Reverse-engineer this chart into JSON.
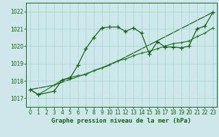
{
  "title": "Graphe pression niveau de la mer (hPa)",
  "bg_color": "#cce8e8",
  "grid_color": "#b0d4d4",
  "line_color_dark": "#1a5c1a",
  "line_color_mid": "#2d7a2d",
  "xlim": [
    -0.5,
    23.5
  ],
  "ylim": [
    1016.5,
    1022.5
  ],
  "yticks": [
    1017,
    1018,
    1019,
    1020,
    1021,
    1022
  ],
  "xticks": [
    0,
    1,
    2,
    3,
    4,
    5,
    6,
    7,
    8,
    9,
    10,
    11,
    12,
    13,
    14,
    15,
    16,
    17,
    18,
    19,
    20,
    21,
    22,
    23
  ],
  "series1_x": [
    0,
    1,
    3,
    4,
    5,
    6,
    7,
    8,
    9,
    10,
    11,
    12,
    13,
    14,
    15,
    16,
    17,
    18,
    19,
    20,
    21,
    22,
    23
  ],
  "series1_y": [
    1017.5,
    1017.2,
    1017.4,
    1018.05,
    1018.15,
    1018.9,
    1019.85,
    1020.5,
    1021.05,
    1021.1,
    1021.1,
    1020.85,
    1021.05,
    1020.75,
    1019.55,
    1020.25,
    1019.95,
    1019.95,
    1019.9,
    1020.0,
    1021.0,
    1021.15,
    1021.95
  ],
  "series2_x": [
    0,
    1,
    3,
    4,
    5,
    6,
    7,
    8,
    9,
    10,
    11,
    12,
    13,
    14,
    15,
    16,
    17,
    18,
    19,
    20,
    21,
    22,
    23
  ],
  "series2_y": [
    1017.5,
    1017.2,
    1017.75,
    1018.05,
    1018.2,
    1018.3,
    1018.35,
    1018.6,
    1018.75,
    1018.95,
    1019.15,
    1019.25,
    1019.45,
    1019.6,
    1019.7,
    1019.85,
    1020.0,
    1020.15,
    1020.2,
    1020.3,
    1020.55,
    1020.75,
    1021.05
  ],
  "series3_x": [
    0,
    3,
    10,
    23
  ],
  "series3_y": [
    1017.5,
    1017.75,
    1018.9,
    1021.95
  ],
  "marker_size": 2.0,
  "linewidth": 0.9,
  "title_fontsize": 6.5,
  "tick_fontsize": 5.5
}
